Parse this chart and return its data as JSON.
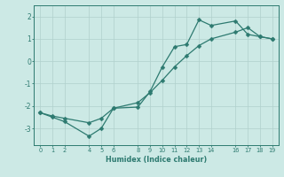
{
  "xlabel": "Humidex (Indice chaleur)",
  "background_color": "#cce9e5",
  "line_color": "#2d7a70",
  "grid_color": "#b0d0cc",
  "line1_x": [
    0,
    1,
    2,
    4,
    5,
    6,
    8,
    9,
    10,
    11,
    12,
    13,
    14,
    16,
    17,
    18,
    19
  ],
  "line1_y": [
    -2.3,
    -2.5,
    -2.7,
    -3.35,
    -3.0,
    -2.1,
    -2.05,
    -1.35,
    -0.25,
    0.65,
    0.75,
    1.85,
    1.6,
    1.8,
    1.2,
    1.1,
    1.0
  ],
  "line2_x": [
    0,
    1,
    2,
    4,
    5,
    6,
    8,
    9,
    10,
    11,
    12,
    13,
    14,
    16,
    17,
    18,
    19
  ],
  "line2_y": [
    -2.3,
    -2.45,
    -2.55,
    -2.75,
    -2.55,
    -2.1,
    -1.85,
    -1.4,
    -0.85,
    -0.25,
    0.25,
    0.7,
    1.0,
    1.3,
    1.5,
    1.1,
    1.0
  ],
  "xticks": [
    0,
    1,
    2,
    4,
    5,
    6,
    8,
    9,
    10,
    11,
    12,
    13,
    14,
    16,
    17,
    18,
    19
  ],
  "yticks": [
    -3,
    -2,
    -1,
    0,
    1,
    2
  ],
  "xlim": [
    -0.5,
    19.5
  ],
  "ylim": [
    -3.75,
    2.5
  ]
}
